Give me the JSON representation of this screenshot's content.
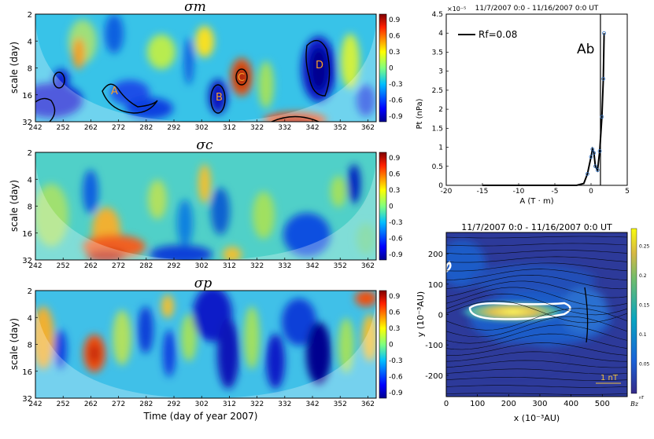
{
  "chart_data": [
    {
      "type": "heatmap",
      "title": "σm",
      "ylabel": "scale (day)",
      "xlabel": "",
      "x_ticks": [
        "242",
        "252",
        "262",
        "272",
        "282",
        "292",
        "302",
        "312",
        "322",
        "332",
        "342",
        "352",
        "362"
      ],
      "y_ticks": [
        "2",
        "4",
        "8",
        "16",
        "32"
      ],
      "xlim": [
        242,
        365
      ],
      "ylim": [
        2,
        32
      ],
      "y_scale": "log2",
      "colorbar_ticks": [
        "0.9",
        "0.6",
        "0.3",
        "0",
        "-0.3",
        "-0.6",
        "-0.9"
      ],
      "colorbar_range": [
        -1,
        1
      ],
      "annotations": [
        {
          "label": "A",
          "x": 272,
          "y": 14
        },
        {
          "label": "B",
          "x": 309,
          "y": 17
        },
        {
          "label": "C",
          "x": 316,
          "y": 10
        },
        {
          "label": "D",
          "x": 345,
          "y": 7
        }
      ]
    },
    {
      "type": "heatmap",
      "title": "σc",
      "ylabel": "scale (day)",
      "xlabel": "",
      "x_ticks": [
        "242",
        "252",
        "262",
        "272",
        "282",
        "292",
        "302",
        "312",
        "322",
        "332",
        "342",
        "352",
        "362"
      ],
      "y_ticks": [
        "2",
        "4",
        "8",
        "16",
        "32"
      ],
      "xlim": [
        242,
        365
      ],
      "ylim": [
        2,
        32
      ],
      "y_scale": "log2",
      "colorbar_ticks": [
        "0.9",
        "0.6",
        "0.3",
        "0",
        "-0.3",
        "-0.6",
        "-0.9"
      ],
      "colorbar_range": [
        -1,
        1
      ]
    },
    {
      "type": "heatmap",
      "title": "σp",
      "ylabel": "scale (day)",
      "xlabel": "Time (day of year 2007)",
      "x_ticks": [
        "242",
        "252",
        "262",
        "272",
        "282",
        "292",
        "302",
        "312",
        "322",
        "332",
        "342",
        "352",
        "362"
      ],
      "y_ticks": [
        "2",
        "4",
        "8",
        "16",
        "32"
      ],
      "xlim": [
        242,
        365
      ],
      "ylim": [
        2,
        32
      ],
      "y_scale": "log2",
      "colorbar_ticks": [
        "0.9",
        "0.6",
        "0.3",
        "0",
        "-0.3",
        "-0.6",
        "-0.9"
      ],
      "colorbar_range": [
        -1,
        1
      ]
    },
    {
      "type": "line",
      "title": "11/7/2007 0:0 - 11/16/2007 0:0 UT",
      "xlabel": "A (T · m)",
      "ylabel": "Pt (nPa)",
      "y_multiplier": "×10⁻⁵",
      "xlim": [
        -20,
        5
      ],
      "ylim": [
        0,
        4.5
      ],
      "x_ticks": [
        "-20",
        "-15",
        "-10",
        "-5",
        "0",
        "5"
      ],
      "y_ticks": [
        "0",
        "0.5",
        "1",
        "1.5",
        "2",
        "2.5",
        "3",
        "3.5",
        "4",
        "4.5"
      ],
      "legend": "Rf=0.08",
      "legend_placement": "top-left",
      "annotation": "Ab",
      "ab_line_x": 1.3,
      "series": [
        {
          "x": [
            -15,
            -2,
            -1,
            -0.5,
            0,
            0.2,
            0.4,
            0.6,
            0.9,
            1.2,
            1.5,
            1.7,
            1.8
          ],
          "y": [
            0,
            0,
            0.05,
            0.3,
            0.75,
            0.95,
            0.85,
            0.5,
            0.4,
            0.9,
            1.8,
            2.8,
            4.0
          ]
        }
      ]
    },
    {
      "type": "heatmap",
      "title": "11/7/2007 0:0 - 11/16/2007 0:0 UT",
      "xlabel": "x (10⁻³AU)",
      "ylabel": "y (10⁻³AU)",
      "xlim": [
        0,
        580
      ],
      "ylim": [
        -270,
        270
      ],
      "x_ticks": [
        "0",
        "100",
        "200",
        "300",
        "400",
        "500"
      ],
      "y_ticks": [
        "200",
        "100",
        "0",
        "-100",
        "-200"
      ],
      "colorbar_ticks": [
        "0.25",
        "0.2",
        "0.15",
        "0.1",
        "0.05"
      ],
      "colorbar_unit": "nT",
      "colorbar_label": "Bz",
      "arrow_label": "1 nT"
    }
  ]
}
